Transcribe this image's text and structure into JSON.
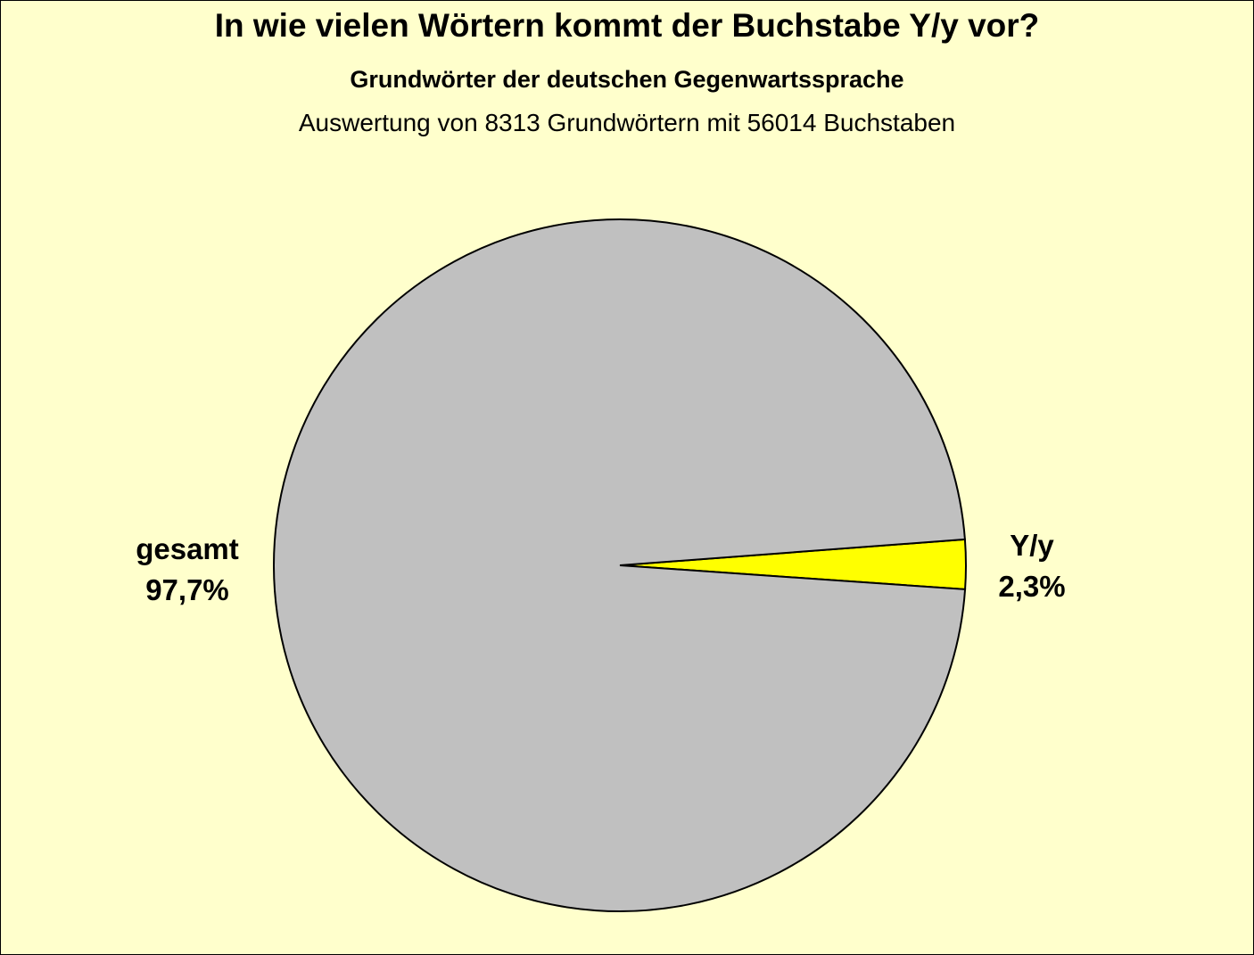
{
  "chart_data": {
    "type": "pie",
    "title": "In wie vielen Wörtern kommt der Buchstabe Y/y vor?",
    "subtitle": "Grundwörter der deutschen Gegenwartssprache",
    "subtitle2": "Auswertung von 8313 Grundwörtern mit 56014 Buchstaben",
    "slices": [
      {
        "label": "Y/y",
        "value": 2.3,
        "value_label": "2,3%",
        "color": "#ffff00"
      },
      {
        "label": "gesamt",
        "value": 97.7,
        "value_label": "97,7%",
        "color": "#c0c0c0"
      }
    ],
    "background": "#ffffcc"
  }
}
